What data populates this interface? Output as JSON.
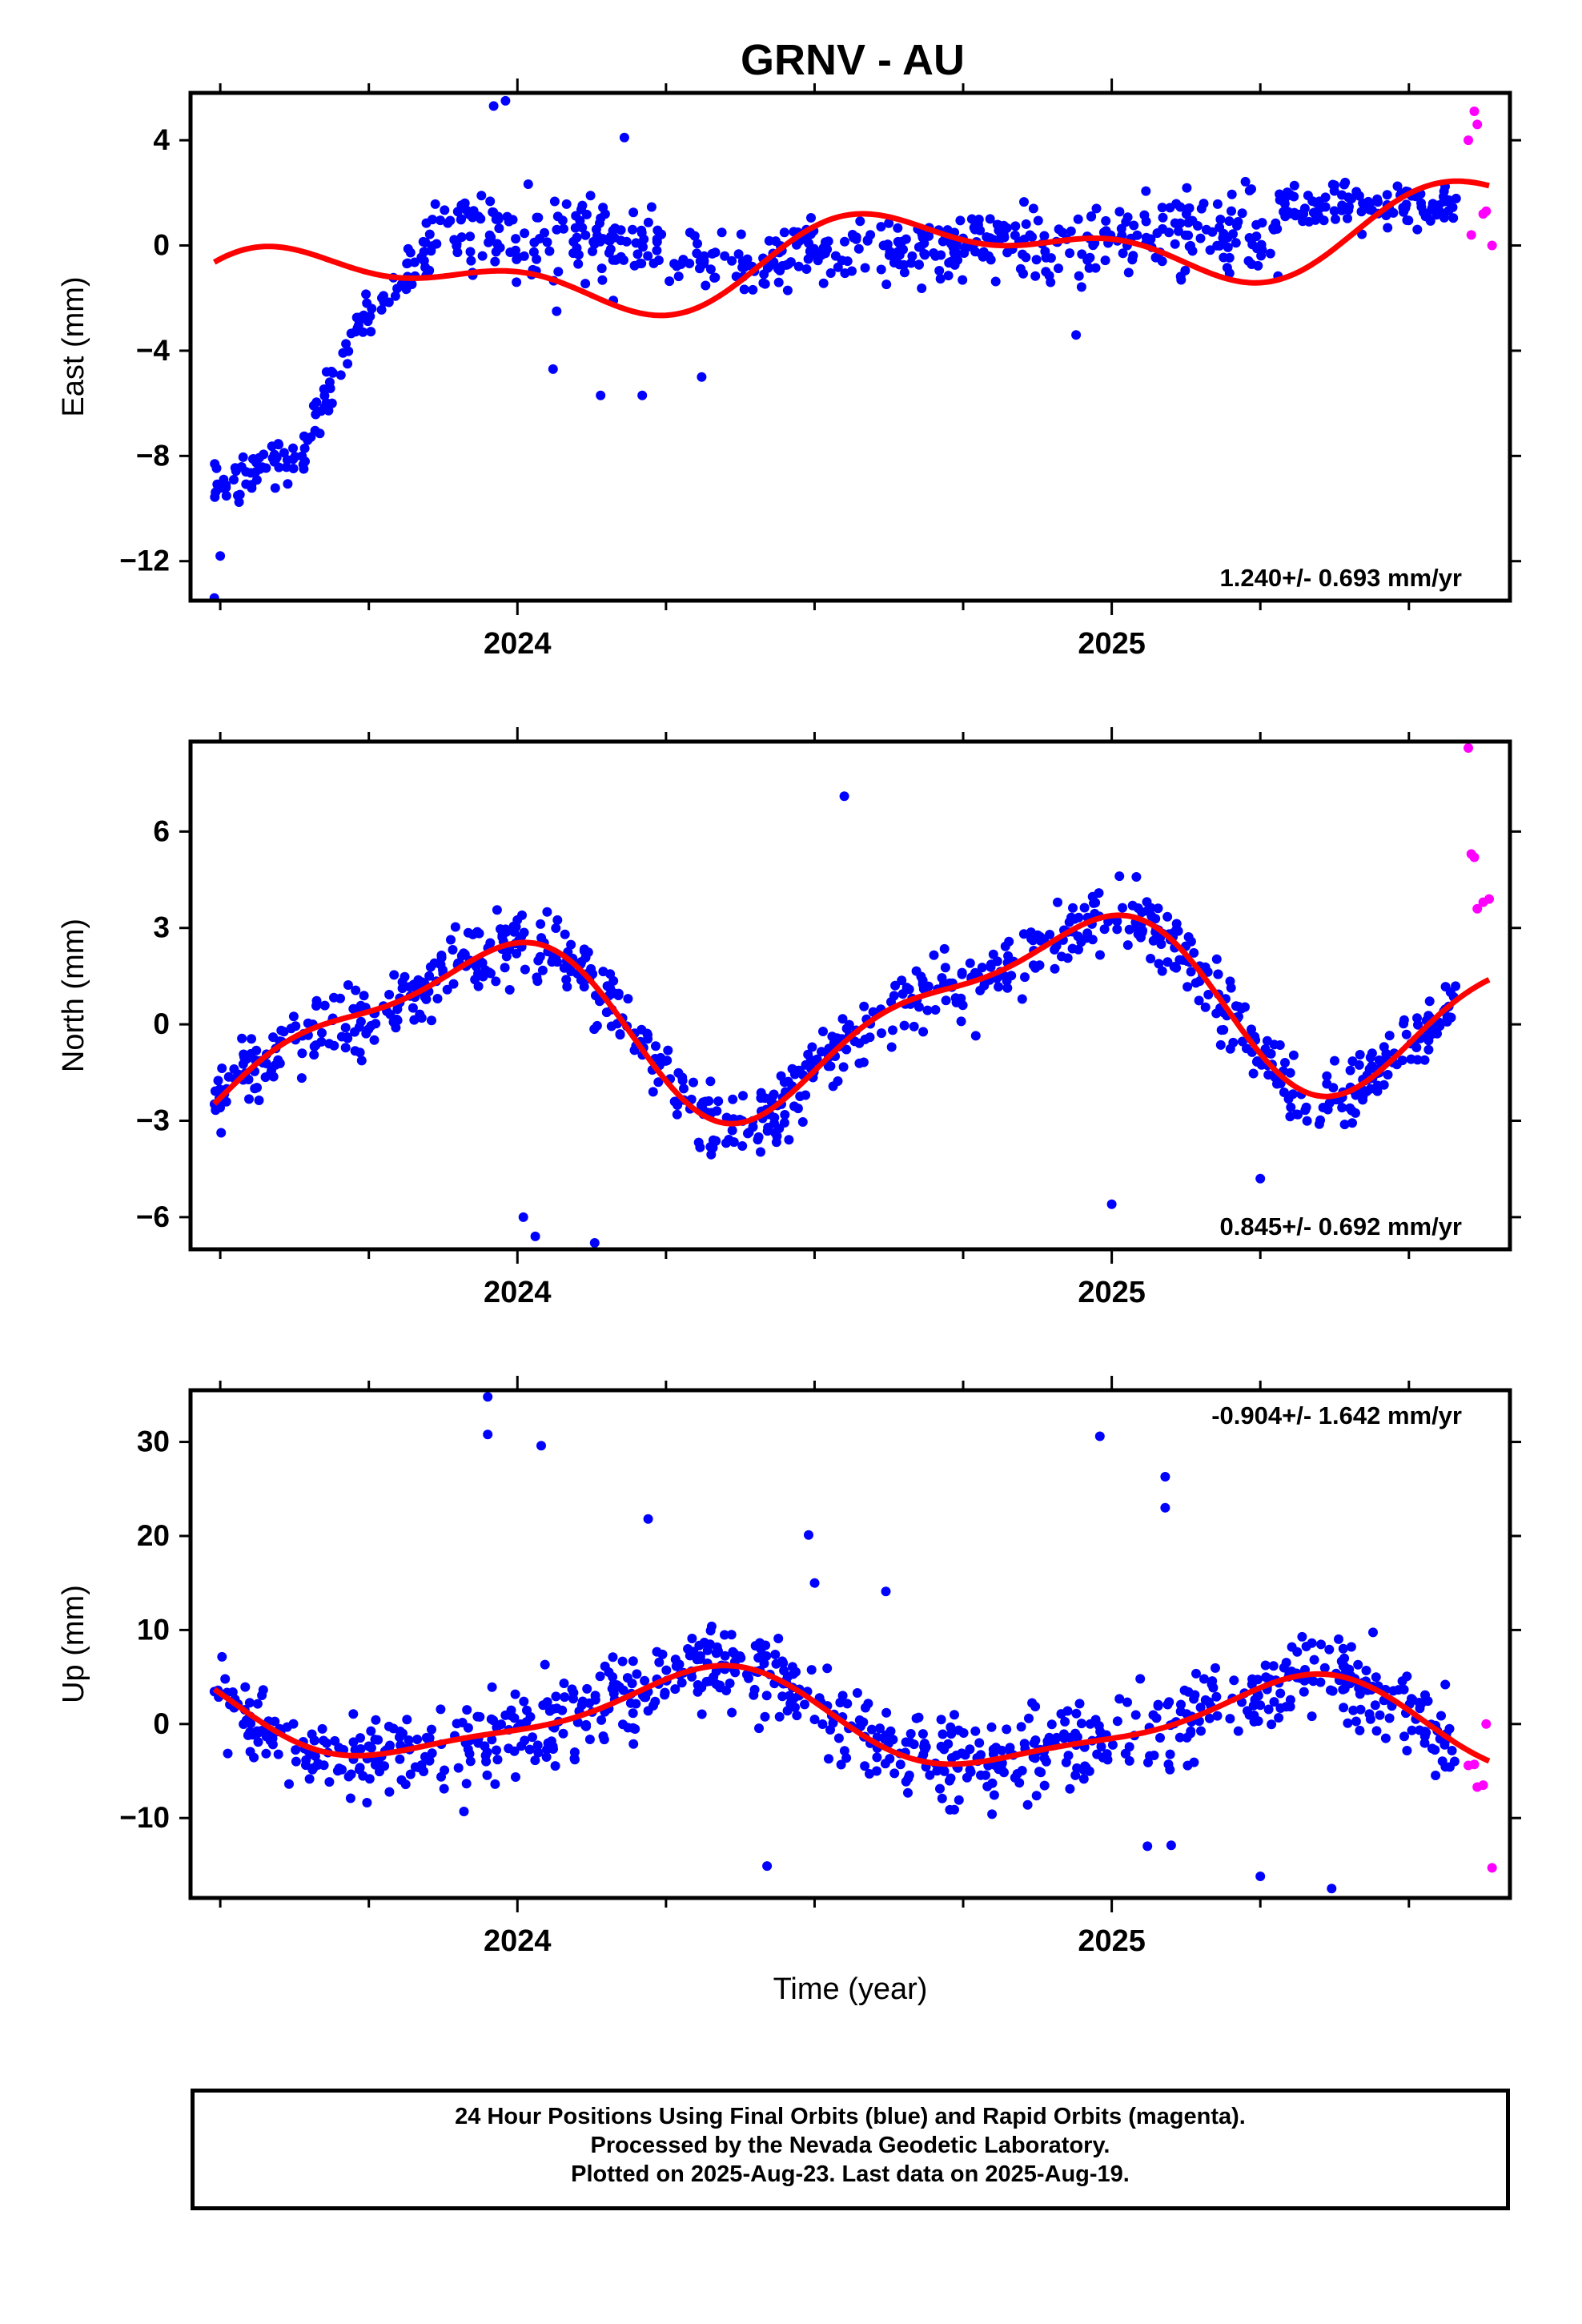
{
  "title": "GRNV - AU",
  "footer": {
    "line1": "24 Hour Positions Using Final Orbits (blue) and Rapid Orbits (magenta).",
    "line2": "Processed by the Nevada Geodetic Laboratory.",
    "line3": "Plotted on 2025-Aug-23. Last data on 2025-Aug-19."
  },
  "colors": {
    "final": "#0000ff",
    "rapid": "#ff00ff",
    "model": "#ff0000",
    "axes": "#000000"
  },
  "chart_data": [
    {
      "type": "scatter",
      "ylabel": "East (mm)",
      "xlabel": "",
      "xlim": [
        2023.45,
        2025.67
      ],
      "ylim": [
        -13.5,
        5.8
      ],
      "yticks": [
        -12,
        -8,
        -4,
        0,
        4
      ],
      "ytick_labels": [
        "−12",
        "−8",
        "−4",
        "0",
        "4"
      ],
      "xticks_major": [
        2024,
        2025
      ],
      "xtick_labels": [
        "2024",
        "2025"
      ],
      "rate_label": "1.240+/- 0.693 mm/yr",
      "rate_position": "bottom-right",
      "trend": {
        "slope": 1.24,
        "ref": 2024.56,
        "offset": -0.45
      },
      "seasonal": [
        {
          "period": 1,
          "amp": 1.25,
          "phase": 3.6
        },
        {
          "period": 0.5,
          "amp": 0.75,
          "phase": 1.2
        }
      ],
      "segments": [
        {
          "x": [
            2023.49,
            2023.64
          ],
          "y": [
            -9.2,
            -8.0
          ],
          "noise": 0.9,
          "n": 55
        },
        {
          "x": [
            2023.64,
            2023.74
          ],
          "y": [
            -8.0,
            -2.5
          ],
          "noise": 0.8,
          "n": 35
        },
        {
          "x": [
            2023.74,
            2023.85
          ],
          "y": [
            -2.5,
            -0.2
          ],
          "noise": 0.9,
          "n": 35
        },
        {
          "x": [
            2023.85,
            2024.25
          ],
          "y": [
            0.6,
            0.0
          ],
          "noise": 1.6,
          "n": 150
        },
        {
          "x": [
            2024.25,
            2024.75
          ],
          "y": [
            -0.6,
            -0.2
          ],
          "noise": 1.1,
          "n": 170
        },
        {
          "x": [
            2024.75,
            2025.28
          ],
          "y": [
            0.2,
            0.5
          ],
          "noise": 1.3,
          "n": 190
        },
        {
          "x": [
            2025.28,
            2025.58
          ],
          "y": [
            1.4,
            1.6
          ],
          "noise": 0.8,
          "n": 110
        }
      ],
      "outliers": [
        [
          2023.49,
          -13.4
        ],
        [
          2023.5,
          -11.8
        ],
        [
          2023.96,
          5.3
        ],
        [
          2023.98,
          5.5
        ],
        [
          2024.18,
          4.1
        ],
        [
          2024.14,
          -5.7
        ],
        [
          2024.21,
          -5.7
        ],
        [
          2024.06,
          -4.7
        ],
        [
          2024.31,
          -5.0
        ],
        [
          2024.94,
          -3.4
        ]
      ],
      "rapid_points": [
        [
          2025.6,
          4.0
        ],
        [
          2025.61,
          5.1
        ],
        [
          2025.615,
          4.6
        ],
        [
          2025.605,
          0.4
        ],
        [
          2025.625,
          1.2
        ],
        [
          2025.63,
          1.3
        ],
        [
          2025.64,
          0.0
        ]
      ]
    },
    {
      "type": "scatter",
      "ylabel": "North (mm)",
      "xlabel": "",
      "xlim": [
        2023.45,
        2025.67
      ],
      "ylim": [
        -7.0,
        8.8
      ],
      "yticks": [
        -6,
        -3,
        0,
        3,
        6
      ],
      "ytick_labels": [
        "−6",
        "−3",
        "0",
        "3",
        "6"
      ],
      "xticks_major": [
        2024,
        2025
      ],
      "xtick_labels": [
        "2024",
        "2025"
      ],
      "rate_label": "0.845+/- 0.692 mm/yr",
      "rate_position": "bottom-right",
      "trend": {
        "slope": 0.845,
        "ref": 2024.56,
        "offset": 0.3
      },
      "seasonal": [
        {
          "period": 1,
          "amp": 2.55,
          "phase": 2.1
        },
        {
          "period": 0.5,
          "amp": 0.9,
          "phase": 0.6
        }
      ],
      "noise": 0.95,
      "n": 800,
      "xrange": [
        2023.49,
        2025.58
      ],
      "outliers": [
        [
          2024.13,
          -6.8
        ],
        [
          2024.01,
          -6.0
        ],
        [
          2024.03,
          -6.6
        ],
        [
          2025.0,
          -5.6
        ],
        [
          2024.55,
          7.1
        ],
        [
          2025.25,
          -4.8
        ],
        [
          2024.08,
          2.8
        ],
        [
          2025.57,
          1.0
        ],
        [
          2025.12,
          2.0
        ]
      ],
      "rapid_points": [
        [
          2025.6,
          8.6
        ],
        [
          2025.605,
          5.3
        ],
        [
          2025.61,
          5.2
        ],
        [
          2025.615,
          3.6
        ],
        [
          2025.625,
          3.8
        ],
        [
          2025.635,
          3.9
        ]
      ]
    },
    {
      "type": "scatter",
      "ylabel": "Up (mm)",
      "xlabel": "Time (year)",
      "xlim": [
        2023.45,
        2025.67
      ],
      "ylim": [
        -18.5,
        35.5
      ],
      "yticks": [
        -10,
        0,
        10,
        20,
        30
      ],
      "ytick_labels": [
        "−10",
        "0",
        "10",
        "20",
        "30"
      ],
      "xticks_major": [
        2024,
        2025
      ],
      "xtick_labels": [
        "2024",
        "2025"
      ],
      "rate_label": "-0.904+/- 1.642 mm/yr",
      "rate_position": "top-right",
      "trend": {
        "slope": -0.904,
        "ref": 2024.56,
        "offset": 0.4
      },
      "seasonal": [
        {
          "period": 1,
          "amp": 4.6,
          "phase": 5.9
        },
        {
          "period": 0.5,
          "amp": 1.3,
          "phase": 3.0
        }
      ],
      "noise": 4.0,
      "n": 800,
      "xrange": [
        2023.49,
        2025.58
      ],
      "outliers": [
        [
          2023.95,
          34.8
        ],
        [
          2023.95,
          30.8
        ],
        [
          2024.04,
          29.6
        ],
        [
          2024.98,
          30.6
        ],
        [
          2025.09,
          26.3
        ],
        [
          2025.09,
          23.0
        ],
        [
          2024.22,
          21.8
        ],
        [
          2024.49,
          20.1
        ],
        [
          2024.5,
          15.0
        ],
        [
          2024.62,
          14.1
        ],
        [
          2025.25,
          -16.2
        ],
        [
          2025.37,
          -17.5
        ],
        [
          2024.42,
          -15.1
        ],
        [
          2023.91,
          -9.3
        ],
        [
          2025.06,
          -13.0
        ],
        [
          2025.1,
          -12.9
        ]
      ],
      "rapid_points": [
        [
          2025.6,
          -4.4
        ],
        [
          2025.61,
          -4.3
        ],
        [
          2025.615,
          -6.7
        ],
        [
          2025.625,
          -6.5
        ],
        [
          2025.63,
          0.0
        ],
        [
          2025.64,
          -15.3
        ]
      ]
    }
  ]
}
